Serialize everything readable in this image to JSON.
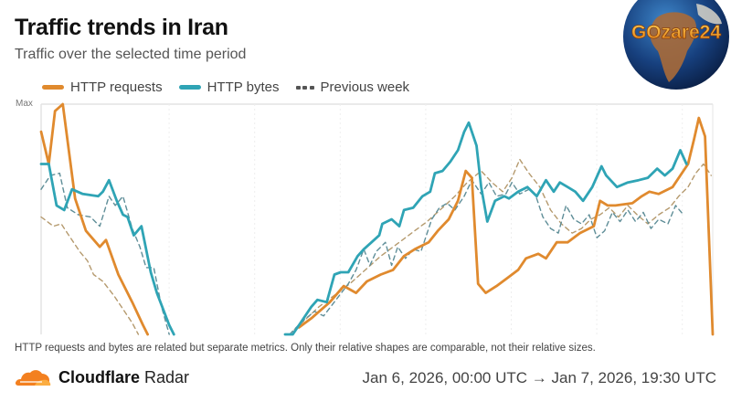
{
  "header": {
    "title": "Traffic trends in Iran",
    "subtitle": "Traffic over the selected time period"
  },
  "watermark": {
    "text": "GOzare24",
    "icon": "globe-icon"
  },
  "legend": {
    "items": [
      {
        "label": "HTTP requests",
        "style": "solid",
        "color": "#e08a2e"
      },
      {
        "label": "HTTP bytes",
        "style": "solid",
        "color": "#2fa4b5"
      },
      {
        "label": "Previous week",
        "style": "dashed",
        "color": "#555555"
      }
    ]
  },
  "footnote": "HTTP requests and bytes are related but separate metrics. Only their relative shapes are comparable, not their relative sizes.",
  "footer": {
    "brand_bold": "Cloudflare",
    "brand_light": "Radar",
    "brand_icon": "cloudflare-cloud-icon",
    "date_range": "Jan 6, 2026, 00:00 UTC → Jan 7, 2026, 19:30 UTC"
  },
  "colors": {
    "requests": "#e08a2e",
    "bytes": "#2fa4b5",
    "prev_requests": "#b59a6e",
    "prev_bytes": "#5f8e98",
    "grid": "#e6e6e6"
  },
  "chart_data": {
    "type": "line",
    "title": "Traffic trends in Iran",
    "subtitle": "Traffic over the selected time period",
    "xlabel": "",
    "ylabel": "",
    "y_tick_labels": [
      "Max"
    ],
    "ylim": [
      0,
      1
    ],
    "x_range_hours": [
      0,
      43.5
    ],
    "x_start": "Jan 6, 2026, 00:00 UTC",
    "x_end": "Jan 7, 2026, 19:30 UTC",
    "grid": "vertical",
    "legend_position": "top-left",
    "note": "Values normalized: 1 = Max. x in hours since Jan 6 00:00 UTC. null = no data (outage gap).",
    "series": [
      {
        "name": "HTTP requests",
        "style": "solid",
        "points": [
          [
            0.0,
            0.88
          ],
          [
            0.5,
            0.74
          ],
          [
            0.9,
            0.97
          ],
          [
            1.4,
            1.0
          ],
          [
            2.2,
            0.59
          ],
          [
            2.9,
            0.45
          ],
          [
            3.8,
            0.38
          ],
          [
            4.2,
            0.41
          ],
          [
            5.0,
            0.26
          ],
          [
            5.9,
            0.14
          ],
          [
            6.6,
            0.04
          ],
          [
            6.9,
            0.0
          ],
          [
            7.2,
            null
          ],
          [
            16.4,
            null
          ],
          [
            16.7,
            0.03
          ],
          [
            17.5,
            0.07
          ],
          [
            18.7,
            0.14
          ],
          [
            19.6,
            0.21
          ],
          [
            20.4,
            0.18
          ],
          [
            21.1,
            0.23
          ],
          [
            22.0,
            0.26
          ],
          [
            22.8,
            0.28
          ],
          [
            23.5,
            0.34
          ],
          [
            24.2,
            0.37
          ],
          [
            25.1,
            0.4
          ],
          [
            25.7,
            0.45
          ],
          [
            26.4,
            0.5
          ],
          [
            27.0,
            0.58
          ],
          [
            27.5,
            0.71
          ],
          [
            27.9,
            0.68
          ],
          [
            28.3,
            0.22
          ],
          [
            28.8,
            0.18
          ],
          [
            29.5,
            0.21
          ],
          [
            30.3,
            0.25
          ],
          [
            30.9,
            0.28
          ],
          [
            31.4,
            0.33
          ],
          [
            32.2,
            0.35
          ],
          [
            32.7,
            0.33
          ],
          [
            33.4,
            0.4
          ],
          [
            34.1,
            0.4
          ],
          [
            34.9,
            0.44
          ],
          [
            35.8,
            0.47
          ],
          [
            36.2,
            0.58
          ],
          [
            36.7,
            0.56
          ],
          [
            37.2,
            0.56
          ],
          [
            38.3,
            0.57
          ],
          [
            38.9,
            0.6
          ],
          [
            39.4,
            0.62
          ],
          [
            40.0,
            0.61
          ],
          [
            40.9,
            0.64
          ],
          [
            41.5,
            0.7
          ],
          [
            41.9,
            0.74
          ],
          [
            42.3,
            0.85
          ],
          [
            42.6,
            0.94
          ],
          [
            43.0,
            0.86
          ],
          [
            43.5,
            0.0
          ]
        ]
      },
      {
        "name": "HTTP bytes",
        "style": "solid",
        "points": [
          [
            0.0,
            0.74
          ],
          [
            0.5,
            0.74
          ],
          [
            1.0,
            0.56
          ],
          [
            1.5,
            0.54
          ],
          [
            2.0,
            0.63
          ],
          [
            2.7,
            0.61
          ],
          [
            3.7,
            0.6
          ],
          [
            4.0,
            0.62
          ],
          [
            4.4,
            0.67
          ],
          [
            4.9,
            0.58
          ],
          [
            5.3,
            0.52
          ],
          [
            5.6,
            0.51
          ],
          [
            6.0,
            0.43
          ],
          [
            6.5,
            0.47
          ],
          [
            7.1,
            0.27
          ],
          [
            7.5,
            0.18
          ],
          [
            8.3,
            0.04
          ],
          [
            8.6,
            0.0
          ],
          [
            9.0,
            null
          ],
          [
            15.5,
            null
          ],
          [
            15.8,
            0.0
          ],
          [
            16.3,
            0.0
          ],
          [
            16.9,
            0.06
          ],
          [
            17.5,
            0.12
          ],
          [
            17.9,
            0.15
          ],
          [
            18.5,
            0.14
          ],
          [
            19.0,
            0.26
          ],
          [
            19.4,
            0.27
          ],
          [
            19.9,
            0.27
          ],
          [
            20.5,
            0.34
          ],
          [
            20.9,
            0.37
          ],
          [
            21.4,
            0.4
          ],
          [
            21.9,
            0.43
          ],
          [
            22.1,
            0.48
          ],
          [
            22.7,
            0.5
          ],
          [
            23.2,
            0.47
          ],
          [
            23.5,
            0.54
          ],
          [
            24.1,
            0.55
          ],
          [
            24.7,
            0.6
          ],
          [
            25.2,
            0.62
          ],
          [
            25.5,
            0.7
          ],
          [
            26.0,
            0.71
          ],
          [
            26.5,
            0.75
          ],
          [
            27.0,
            0.8
          ],
          [
            27.4,
            0.88
          ],
          [
            27.7,
            0.92
          ],
          [
            28.2,
            0.82
          ],
          [
            28.5,
            0.64
          ],
          [
            28.9,
            0.49
          ],
          [
            29.4,
            0.58
          ],
          [
            30.0,
            0.6
          ],
          [
            30.3,
            0.59
          ],
          [
            30.9,
            0.62
          ],
          [
            31.5,
            0.64
          ],
          [
            32.1,
            0.6
          ],
          [
            32.7,
            0.67
          ],
          [
            33.2,
            0.62
          ],
          [
            33.6,
            0.66
          ],
          [
            34.1,
            0.64
          ],
          [
            34.6,
            0.62
          ],
          [
            35.1,
            0.58
          ],
          [
            35.7,
            0.64
          ],
          [
            36.3,
            0.73
          ],
          [
            36.6,
            0.69
          ],
          [
            37.3,
            0.64
          ],
          [
            38.0,
            0.66
          ],
          [
            38.7,
            0.67
          ],
          [
            39.3,
            0.68
          ],
          [
            39.9,
            0.72
          ],
          [
            40.4,
            0.69
          ],
          [
            40.9,
            0.72
          ],
          [
            41.4,
            0.8
          ],
          [
            41.8,
            0.74
          ]
        ]
      },
      {
        "name": "Previous week (HTTP requests)",
        "style": "dashed",
        "points": [
          [
            0.0,
            0.51
          ],
          [
            0.8,
            0.47
          ],
          [
            1.3,
            0.48
          ],
          [
            1.7,
            0.44
          ],
          [
            2.5,
            0.36
          ],
          [
            3.0,
            0.32
          ],
          [
            3.4,
            0.26
          ],
          [
            4.0,
            0.23
          ],
          [
            4.7,
            0.17
          ],
          [
            5.3,
            0.11
          ],
          [
            5.9,
            0.05
          ],
          [
            6.3,
            0.0
          ],
          [
            6.6,
            null
          ],
          [
            16.0,
            null
          ],
          [
            16.4,
            0.02
          ],
          [
            17.2,
            0.07
          ],
          [
            18.0,
            0.12
          ],
          [
            19.0,
            0.17
          ],
          [
            20.0,
            0.22
          ],
          [
            21.0,
            0.28
          ],
          [
            22.0,
            0.34
          ],
          [
            23.0,
            0.39
          ],
          [
            24.0,
            0.44
          ],
          [
            25.0,
            0.49
          ],
          [
            26.0,
            0.55
          ],
          [
            26.8,
            0.6
          ],
          [
            27.6,
            0.66
          ],
          [
            28.5,
            0.71
          ],
          [
            29.2,
            0.66
          ],
          [
            29.9,
            0.62
          ],
          [
            30.5,
            0.68
          ],
          [
            31.0,
            0.76
          ],
          [
            31.6,
            0.7
          ],
          [
            32.3,
            0.64
          ],
          [
            33.0,
            0.54
          ],
          [
            33.7,
            0.48
          ],
          [
            34.4,
            0.44
          ],
          [
            35.0,
            0.46
          ],
          [
            35.6,
            0.5
          ],
          [
            36.2,
            0.52
          ],
          [
            36.8,
            0.55
          ],
          [
            37.4,
            0.51
          ],
          [
            38.0,
            0.56
          ],
          [
            38.6,
            0.52
          ],
          [
            39.3,
            0.48
          ],
          [
            40.0,
            0.52
          ],
          [
            40.7,
            0.55
          ],
          [
            41.3,
            0.6
          ],
          [
            41.9,
            0.64
          ],
          [
            42.4,
            0.7
          ],
          [
            42.9,
            0.74
          ],
          [
            43.4,
            0.69
          ]
        ]
      },
      {
        "name": "Previous week (HTTP bytes)",
        "style": "dashed",
        "points": [
          [
            0.0,
            0.63
          ],
          [
            0.6,
            0.69
          ],
          [
            1.2,
            0.7
          ],
          [
            1.7,
            0.55
          ],
          [
            2.4,
            0.52
          ],
          [
            3.2,
            0.51
          ],
          [
            3.8,
            0.47
          ],
          [
            4.4,
            0.6
          ],
          [
            4.8,
            0.56
          ],
          [
            5.3,
            0.6
          ],
          [
            5.9,
            0.46
          ],
          [
            6.4,
            0.38
          ],
          [
            6.8,
            0.29
          ],
          [
            7.3,
            0.29
          ],
          [
            7.8,
            0.12
          ],
          [
            8.3,
            0.0
          ],
          [
            8.6,
            null
          ],
          [
            15.8,
            null
          ],
          [
            16.1,
            0.0
          ],
          [
            16.8,
            0.05
          ],
          [
            17.7,
            0.1
          ],
          [
            18.3,
            0.08
          ],
          [
            19.1,
            0.15
          ],
          [
            19.9,
            0.22
          ],
          [
            20.4,
            0.28
          ],
          [
            20.9,
            0.37
          ],
          [
            21.3,
            0.3
          ],
          [
            21.7,
            0.36
          ],
          [
            22.3,
            0.4
          ],
          [
            22.7,
            0.3
          ],
          [
            23.1,
            0.38
          ],
          [
            23.6,
            0.33
          ],
          [
            24.1,
            0.37
          ],
          [
            24.6,
            0.36
          ],
          [
            25.3,
            0.5
          ],
          [
            25.8,
            0.55
          ],
          [
            26.3,
            0.57
          ],
          [
            26.8,
            0.54
          ],
          [
            27.4,
            0.6
          ],
          [
            27.9,
            0.67
          ],
          [
            28.5,
            0.61
          ],
          [
            29.0,
            0.66
          ],
          [
            29.5,
            0.6
          ],
          [
            30.1,
            0.61
          ],
          [
            30.5,
            0.66
          ],
          [
            31.0,
            0.61
          ],
          [
            31.6,
            0.63
          ],
          [
            32.0,
            0.61
          ],
          [
            32.5,
            0.51
          ],
          [
            33.0,
            0.46
          ],
          [
            33.5,
            0.44
          ],
          [
            34.0,
            0.56
          ],
          [
            34.5,
            0.5
          ],
          [
            35.0,
            0.48
          ],
          [
            35.5,
            0.52
          ],
          [
            36.0,
            0.42
          ],
          [
            36.5,
            0.45
          ],
          [
            37.0,
            0.53
          ],
          [
            37.5,
            0.49
          ],
          [
            38.0,
            0.54
          ],
          [
            38.5,
            0.49
          ],
          [
            39.0,
            0.53
          ],
          [
            39.5,
            0.46
          ],
          [
            40.0,
            0.5
          ],
          [
            40.6,
            0.48
          ],
          [
            41.1,
            0.56
          ],
          [
            41.6,
            0.52
          ]
        ]
      }
    ]
  }
}
